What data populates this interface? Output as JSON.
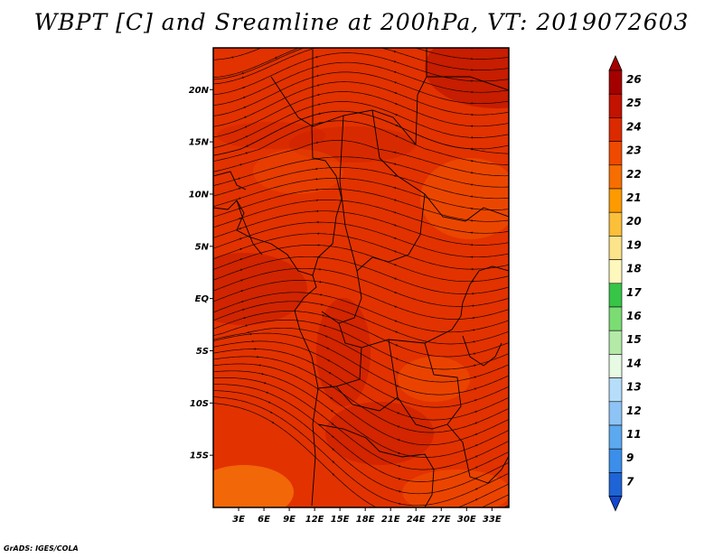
{
  "title": "WBPT [C] and Sreamline at 200hPa, VT: 2019072603",
  "credit": "GrADS: IGES/COLA",
  "map": {
    "lon_range": [
      0,
      35
    ],
    "lat_range": [
      -20,
      24
    ],
    "field": "WBPT",
    "level": "200hPa",
    "lat_ticks": [
      {
        "value": 20,
        "label": "20N"
      },
      {
        "value": 15,
        "label": "15N"
      },
      {
        "value": 10,
        "label": "10N"
      },
      {
        "value": 5,
        "label": "5N"
      },
      {
        "value": 0,
        "label": "EQ"
      },
      {
        "value": -5,
        "label": "5S"
      },
      {
        "value": -10,
        "label": "10S"
      },
      {
        "value": -15,
        "label": "15S"
      }
    ],
    "lon_ticks": [
      {
        "value": 3,
        "label": "3E"
      },
      {
        "value": 6,
        "label": "6E"
      },
      {
        "value": 9,
        "label": "9E"
      },
      {
        "value": 12,
        "label": "12E"
      },
      {
        "value": 15,
        "label": "15E"
      },
      {
        "value": 18,
        "label": "18E"
      },
      {
        "value": 21,
        "label": "21E"
      },
      {
        "value": 24,
        "label": "24E"
      },
      {
        "value": 27,
        "label": "27E"
      },
      {
        "value": 30,
        "label": "30E"
      },
      {
        "value": 33,
        "label": "33E"
      }
    ]
  },
  "colorbar": {
    "levels": [
      {
        "label": "26",
        "color": "#a50000"
      },
      {
        "label": "25",
        "color": "#c31200"
      },
      {
        "label": "24",
        "color": "#dc2a00"
      },
      {
        "label": "23",
        "color": "#ef4a00"
      },
      {
        "label": "22",
        "color": "#f76e00"
      },
      {
        "label": "21",
        "color": "#fc9a00"
      },
      {
        "label": "20",
        "color": "#fcbf3a"
      },
      {
        "label": "19",
        "color": "#fde389"
      },
      {
        "label": "18",
        "color": "#fef8bd"
      },
      {
        "label": "17",
        "color": "#37c548"
      },
      {
        "label": "16",
        "color": "#7bdc74"
      },
      {
        "label": "15",
        "color": "#b4eaa8"
      },
      {
        "label": "14",
        "color": "#e6fae4"
      },
      {
        "label": "13",
        "color": "#b6defa"
      },
      {
        "label": "12",
        "color": "#8ec4f5"
      },
      {
        "label": "11",
        "color": "#5da9ef"
      },
      {
        "label": "9",
        "color": "#3b8ee9"
      },
      {
        "label": "7",
        "color": "#1e64d6"
      }
    ],
    "bottom_color": "#1248cc"
  },
  "palette": {
    "field_base": "#e23200",
    "field_dark": "#c51c00",
    "field_light": "#f25400",
    "field_orange": "#f7790a",
    "lines": "#1a0800",
    "borders": "#000000"
  }
}
